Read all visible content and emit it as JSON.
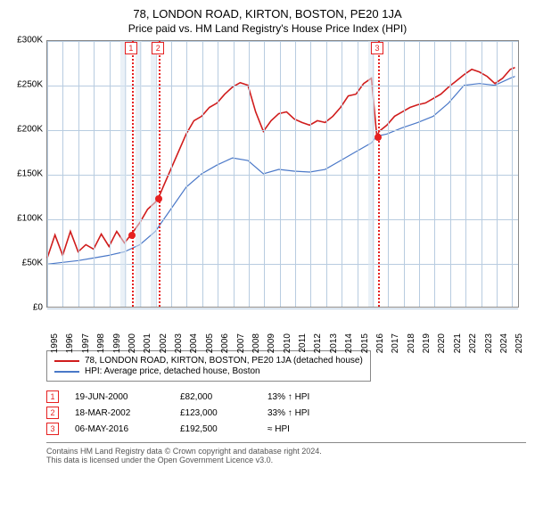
{
  "title": "78, LONDON ROAD, KIRTON, BOSTON, PE20 1JA",
  "subtitle": "Price paid vs. HM Land Registry's House Price Index (HPI)",
  "chart": {
    "type": "line",
    "xlim": [
      1995,
      2025.5
    ],
    "ylim": [
      0,
      300000
    ],
    "ytick_step": 50000,
    "yticks": [
      "£0",
      "£50K",
      "£100K",
      "£150K",
      "£200K",
      "£250K",
      "£300K"
    ],
    "xticks": [
      1995,
      1996,
      1997,
      1998,
      1999,
      2000,
      2001,
      2002,
      2003,
      2004,
      2005,
      2006,
      2007,
      2008,
      2009,
      2010,
      2011,
      2012,
      2013,
      2014,
      2015,
      2016,
      2017,
      2018,
      2019,
      2020,
      2021,
      2022,
      2023,
      2024,
      2025
    ],
    "grid_color": "#b8cce0",
    "background_color": "#ffffff",
    "series": [
      {
        "name": "78, LONDON ROAD, KIRTON, BOSTON, PE20 1JA (detached house)",
        "color": "#d01c1c",
        "width": 1.6,
        "points": [
          [
            1995,
            55000
          ],
          [
            1995.5,
            81000
          ],
          [
            1996,
            58000
          ],
          [
            1996.5,
            85000
          ],
          [
            1997,
            62000
          ],
          [
            1997.5,
            70000
          ],
          [
            1998,
            65000
          ],
          [
            1998.5,
            82000
          ],
          [
            1999,
            68000
          ],
          [
            1999.5,
            85000
          ],
          [
            2000,
            72000
          ],
          [
            2000.46,
            82000
          ],
          [
            2001,
            95000
          ],
          [
            2001.5,
            110000
          ],
          [
            2002,
            118000
          ],
          [
            2002.21,
            123000
          ],
          [
            2002.5,
            135000
          ],
          [
            2003,
            155000
          ],
          [
            2003.5,
            175000
          ],
          [
            2004,
            195000
          ],
          [
            2004.5,
            210000
          ],
          [
            2005,
            215000
          ],
          [
            2005.5,
            225000
          ],
          [
            2006,
            230000
          ],
          [
            2006.5,
            240000
          ],
          [
            2007,
            248000
          ],
          [
            2007.5,
            253000
          ],
          [
            2008,
            250000
          ],
          [
            2008.5,
            220000
          ],
          [
            2009,
            198000
          ],
          [
            2009.5,
            210000
          ],
          [
            2010,
            218000
          ],
          [
            2010.5,
            220000
          ],
          [
            2011,
            212000
          ],
          [
            2011.5,
            208000
          ],
          [
            2012,
            205000
          ],
          [
            2012.5,
            210000
          ],
          [
            2013,
            208000
          ],
          [
            2013.5,
            215000
          ],
          [
            2014,
            225000
          ],
          [
            2014.5,
            238000
          ],
          [
            2015,
            240000
          ],
          [
            2015.5,
            252000
          ],
          [
            2016,
            258000
          ],
          [
            2016.35,
            192500
          ],
          [
            2016.5,
            198000
          ],
          [
            2017,
            205000
          ],
          [
            2017.5,
            215000
          ],
          [
            2018,
            220000
          ],
          [
            2018.5,
            225000
          ],
          [
            2019,
            228000
          ],
          [
            2019.5,
            230000
          ],
          [
            2020,
            235000
          ],
          [
            2020.5,
            240000
          ],
          [
            2021,
            248000
          ],
          [
            2021.5,
            255000
          ],
          [
            2022,
            262000
          ],
          [
            2022.5,
            268000
          ],
          [
            2023,
            265000
          ],
          [
            2023.5,
            260000
          ],
          [
            2024,
            252000
          ],
          [
            2024.5,
            258000
          ],
          [
            2025,
            268000
          ],
          [
            2025.3,
            270000
          ]
        ]
      },
      {
        "name": "HPI: Average price, detached house, Boston",
        "color": "#4a78c8",
        "width": 1.2,
        "points": [
          [
            1995,
            48000
          ],
          [
            1996,
            50000
          ],
          [
            1997,
            52000
          ],
          [
            1998,
            55000
          ],
          [
            1999,
            58000
          ],
          [
            2000,
            62000
          ],
          [
            2001,
            70000
          ],
          [
            2002,
            85000
          ],
          [
            2003,
            110000
          ],
          [
            2004,
            135000
          ],
          [
            2005,
            150000
          ],
          [
            2006,
            160000
          ],
          [
            2007,
            168000
          ],
          [
            2008,
            165000
          ],
          [
            2009,
            150000
          ],
          [
            2010,
            155000
          ],
          [
            2011,
            153000
          ],
          [
            2012,
            152000
          ],
          [
            2013,
            155000
          ],
          [
            2014,
            165000
          ],
          [
            2015,
            175000
          ],
          [
            2016,
            185000
          ],
          [
            2016.35,
            192500
          ],
          [
            2017,
            195000
          ],
          [
            2018,
            202000
          ],
          [
            2019,
            208000
          ],
          [
            2020,
            215000
          ],
          [
            2021,
            230000
          ],
          [
            2022,
            250000
          ],
          [
            2023,
            252000
          ],
          [
            2024,
            250000
          ],
          [
            2025,
            258000
          ],
          [
            2025.3,
            260000
          ]
        ]
      }
    ],
    "bands": [
      {
        "from": 1999.7,
        "to": 2000.1
      },
      {
        "from": 2000.7,
        "to": 2001.1
      },
      {
        "from": 2001.7,
        "to": 2002.1
      },
      {
        "from": 2015.7,
        "to": 2016.1
      }
    ],
    "sale_markers": [
      {
        "idx": "1",
        "x": 2000.46,
        "y": 82000
      },
      {
        "idx": "2",
        "x": 2002.21,
        "y": 123000
      },
      {
        "idx": "3",
        "x": 2016.35,
        "y": 192500
      }
    ]
  },
  "legend": [
    {
      "color": "#d01c1c",
      "label": "78, LONDON ROAD, KIRTON, BOSTON, PE20 1JA (detached house)"
    },
    {
      "color": "#4a78c8",
      "label": "HPI: Average price, detached house, Boston"
    }
  ],
  "sales": [
    {
      "idx": "1",
      "date": "19-JUN-2000",
      "price": "£82,000",
      "delta": "13% ↑ HPI"
    },
    {
      "idx": "2",
      "date": "18-MAR-2002",
      "price": "£123,000",
      "delta": "33% ↑ HPI"
    },
    {
      "idx": "3",
      "date": "06-MAY-2016",
      "price": "£192,500",
      "delta": "≈ HPI"
    }
  ],
  "footnote1": "Contains HM Land Registry data © Crown copyright and database right 2024.",
  "footnote2": "This data is licensed under the Open Government Licence v3.0."
}
